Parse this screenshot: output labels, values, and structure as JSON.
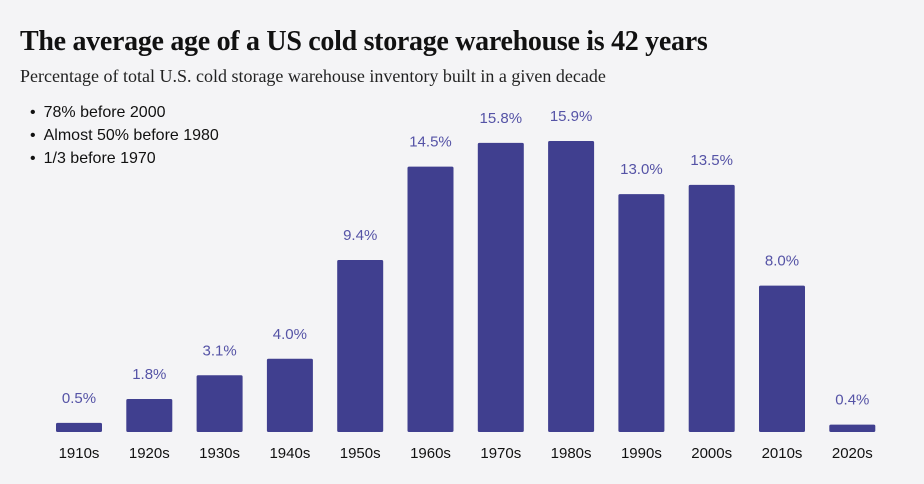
{
  "chart_data": {
    "type": "bar",
    "title": "The average age of a US cold storage warehouse is 42 years",
    "subtitle": "Percentage of total U.S. cold storage warehouse inventory built in a given decade",
    "annotations": [
      "78% before 2000",
      "Almost 50% before 1980",
      "1/3 before 1970"
    ],
    "categories": [
      "1910s",
      "1920s",
      "1930s",
      "1940s",
      "1950s",
      "1960s",
      "1970s",
      "1980s",
      "1990s",
      "2000s",
      "2010s",
      "2020s"
    ],
    "values": [
      0.5,
      1.8,
      3.1,
      4.0,
      9.4,
      14.5,
      15.8,
      15.9,
      13.0,
      13.5,
      8.0,
      0.4
    ],
    "data_labels": [
      "0.5%",
      "1.8%",
      "3.1%",
      "4.0%",
      "9.4%",
      "14.5%",
      "15.8%",
      "15.9%",
      "13.0%",
      "13.5%",
      "8.0%",
      "0.4%"
    ],
    "xlabel": "",
    "ylabel": "",
    "ylim": [
      0,
      16
    ],
    "grid": false,
    "bar_color": "#403f8f",
    "label_color": "#5553a6"
  }
}
